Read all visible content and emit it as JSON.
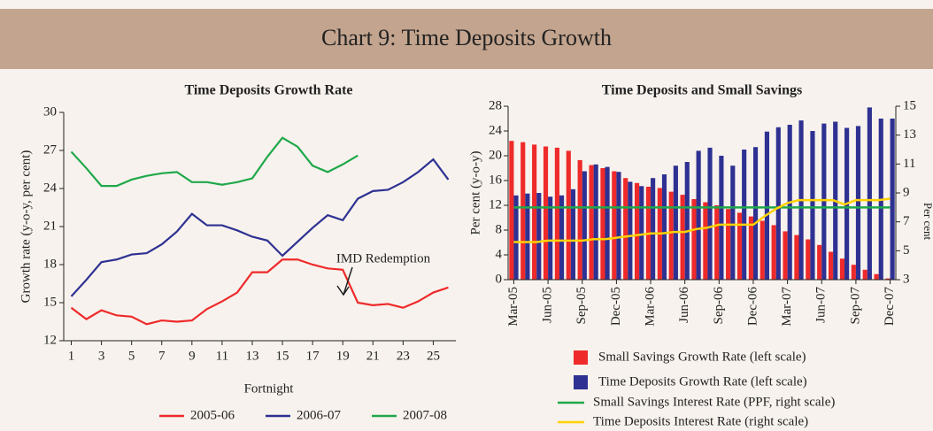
{
  "header": {
    "title": "Chart 9: Time Deposits Growth"
  },
  "chart_data": [
    {
      "type": "line",
      "title": "Time Deposits Growth Rate",
      "y_label": "Growth rate (y-o-y, per cent)",
      "x_label": "Fortnight",
      "annotation": "IMD Redemption",
      "x": [
        1,
        2,
        3,
        4,
        5,
        6,
        7,
        8,
        9,
        10,
        11,
        12,
        13,
        14,
        15,
        16,
        17,
        18,
        19,
        20,
        21,
        22,
        23,
        24,
        25,
        26
      ],
      "xlim": [
        0.5,
        26.5
      ],
      "xticks": [
        1,
        3,
        5,
        7,
        9,
        11,
        13,
        15,
        17,
        19,
        21,
        23,
        25
      ],
      "ylim": [
        12,
        30
      ],
      "yticks": [
        12,
        15,
        18,
        21,
        24,
        27,
        30
      ],
      "series": [
        {
          "name": "2005-06",
          "color": "#ee2a2a",
          "values": [
            14.6,
            13.7,
            14.4,
            14.0,
            13.9,
            13.3,
            13.6,
            13.5,
            13.6,
            14.5,
            15.1,
            15.8,
            17.4,
            17.4,
            18.4,
            18.4,
            18.0,
            17.7,
            17.6,
            15.0,
            14.8,
            14.9,
            14.6,
            15.1,
            15.8,
            16.2
          ]
        },
        {
          "name": "2006-07",
          "color": "#2e3192",
          "values": [
            15.5,
            16.8,
            18.2,
            18.4,
            18.8,
            18.9,
            19.6,
            20.6,
            22.0,
            21.1,
            21.1,
            20.7,
            20.2,
            19.9,
            18.7,
            19.8,
            20.9,
            21.9,
            21.5,
            23.2,
            23.8,
            23.9,
            24.5,
            25.3,
            26.3,
            24.7
          ]
        },
        {
          "name": "2007-08",
          "color": "#1fa84a",
          "values": [
            26.9,
            25.6,
            24.2,
            24.2,
            24.7,
            25.0,
            25.2,
            25.3,
            24.5,
            24.5,
            24.3,
            24.5,
            24.8,
            26.5,
            28.0,
            27.3,
            25.8,
            25.3,
            25.9,
            26.6,
            null,
            null,
            null,
            null,
            null,
            null
          ]
        }
      ]
    },
    {
      "type": "combo",
      "title": "Time Deposits and Small Savings",
      "y_label": "Per cent (y-o-y)",
      "y2_label": "Per cent",
      "categories": [
        "Mar-05",
        null,
        null,
        "Jun-05",
        null,
        null,
        "Sep-05",
        null,
        null,
        "Dec-05",
        null,
        null,
        "Mar-06",
        null,
        null,
        "Jun-06",
        null,
        null,
        "Sep-06",
        null,
        null,
        "Dec-06",
        null,
        null,
        "Mar-07",
        null,
        null,
        "Jun-07",
        null,
        null,
        "Sep-07",
        null,
        null,
        "Dec-07"
      ],
      "ylim": [
        0,
        28
      ],
      "yticks": [
        0,
        4,
        8,
        12,
        16,
        20,
        24,
        28
      ],
      "y2lim": [
        3,
        15
      ],
      "y2ticks": [
        3,
        5,
        7,
        9,
        11,
        13,
        15
      ],
      "series": [
        {
          "name": "Small Savings Growth Rate (left scale)",
          "type": "bar",
          "color": "#ee2a2a",
          "values": [
            22.4,
            22.2,
            21.8,
            21.5,
            21.3,
            20.8,
            19.3,
            18.5,
            18.0,
            17.5,
            16.4,
            15.6,
            15.0,
            14.8,
            14.2,
            13.7,
            13.0,
            12.5,
            12.0,
            11.4,
            10.8,
            10.2,
            9.5,
            8.8,
            7.8,
            7.2,
            6.5,
            5.6,
            4.5,
            3.4,
            2.4,
            1.6,
            0.9,
            0.2
          ]
        },
        {
          "name": "Time Deposits Growth Rate (left scale)",
          "type": "bar",
          "color": "#2e3192",
          "values": [
            13.6,
            13.9,
            14.0,
            13.4,
            13.6,
            14.6,
            17.5,
            18.6,
            18.2,
            17.4,
            15.8,
            15.1,
            16.4,
            17.0,
            18.4,
            19.0,
            20.8,
            21.3,
            20.0,
            18.4,
            21.0,
            21.4,
            23.9,
            24.6,
            25.0,
            25.7,
            24.0,
            25.2,
            25.5,
            24.5,
            24.8,
            27.8,
            26.0,
            26.0
          ]
        },
        {
          "name": "Small Savings Interest Rate (PPF, right scale)",
          "type": "line",
          "axis": "y2",
          "color": "#1fa84a",
          "values": [
            8,
            8,
            8,
            8,
            8,
            8,
            8,
            8,
            8,
            8,
            8,
            8,
            8,
            8,
            8,
            8,
            8,
            8,
            8,
            8,
            8,
            8,
            8,
            8,
            8,
            8,
            8,
            8,
            8,
            8,
            8,
            8,
            8,
            8
          ]
        },
        {
          "name": "Time Deposits Interest Rate (right scale)",
          "type": "line",
          "axis": "y2",
          "color": "#ffd200",
          "values": [
            5.6,
            5.6,
            5.6,
            5.7,
            5.7,
            5.7,
            5.7,
            5.8,
            5.8,
            5.9,
            6.0,
            6.1,
            6.2,
            6.2,
            6.3,
            6.3,
            6.5,
            6.6,
            6.8,
            6.8,
            6.8,
            6.8,
            7.4,
            7.9,
            8.3,
            8.5,
            8.5,
            8.5,
            8.5,
            8.2,
            8.5,
            8.5,
            8.5,
            8.6
          ]
        }
      ]
    }
  ]
}
